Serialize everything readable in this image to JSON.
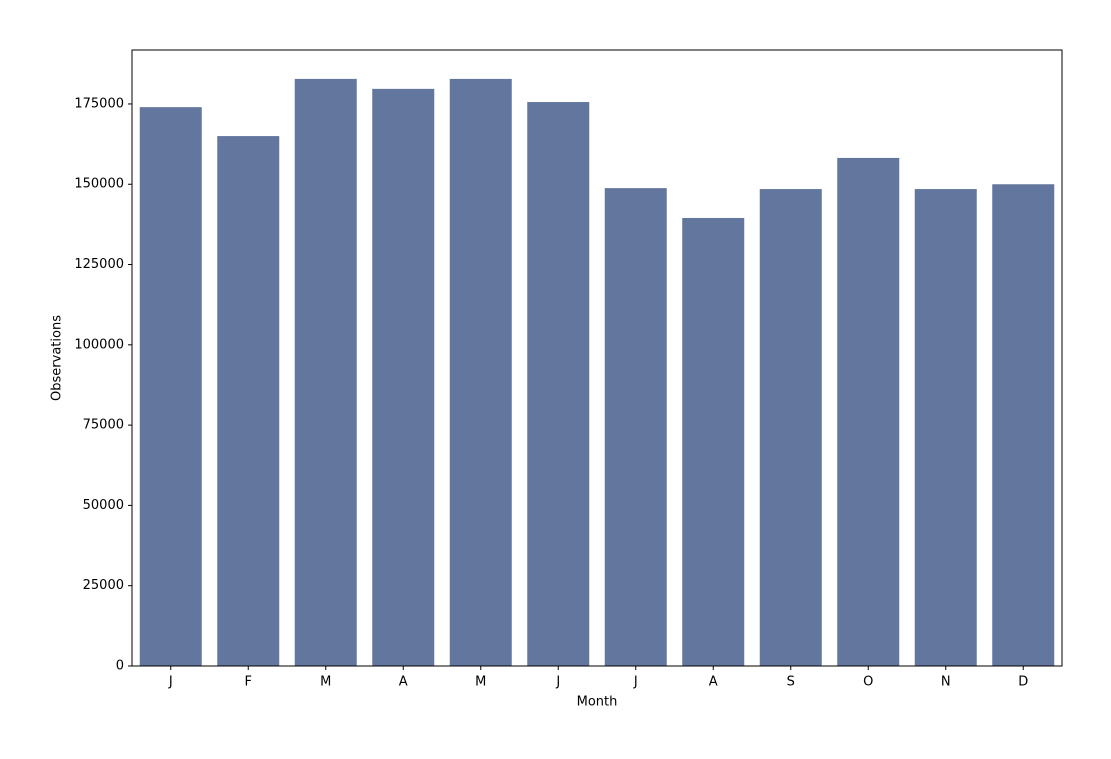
{
  "chart_data": {
    "type": "bar",
    "x_label": "Month",
    "y_label": "Observations",
    "categories": [
      "J",
      "F",
      "M",
      "A",
      "M",
      "J",
      "J",
      "A",
      "S",
      "O",
      "N",
      "D"
    ],
    "values": [
      174000,
      165000,
      182800,
      179700,
      182800,
      175600,
      148800,
      139500,
      148500,
      158200,
      148500,
      150000
    ],
    "color": "#63769e",
    "ylim": [
      0,
      191800
    ],
    "yticks": [
      0,
      25000,
      50000,
      75000,
      100000,
      125000,
      150000,
      175000
    ],
    "grid": false
  }
}
